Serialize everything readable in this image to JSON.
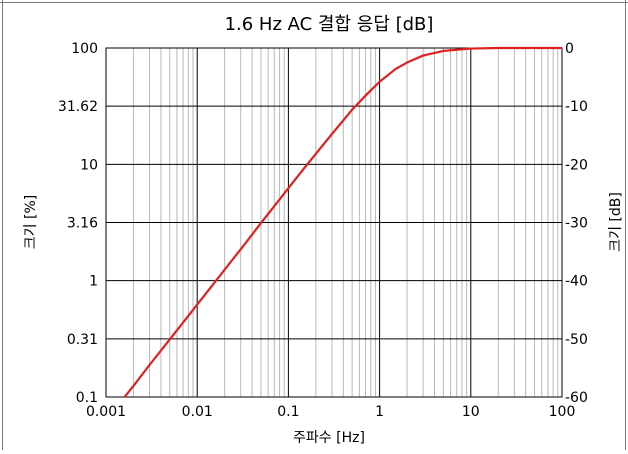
{
  "chart_data": {
    "type": "line",
    "title": "1.6 Hz AC 결합 응답 [dB]",
    "xlabel": "주파수 [Hz]",
    "ylabel_left": "크기 [%]",
    "ylabel_right": "크기 [dB]",
    "x_scale": "log",
    "xlim": [
      0.001,
      100
    ],
    "ylim_db": [
      -60,
      0
    ],
    "grid": true,
    "x_ticks": [
      {
        "value": 0.001,
        "label": "0.001"
      },
      {
        "value": 0.01,
        "label": "0.01"
      },
      {
        "value": 0.1,
        "label": "0.1"
      },
      {
        "value": 1,
        "label": "1"
      },
      {
        "value": 10,
        "label": "10"
      },
      {
        "value": 100,
        "label": "100"
      }
    ],
    "y_ticks_left": [
      {
        "db": 0,
        "label": "100"
      },
      {
        "db": -10,
        "label": "31.62"
      },
      {
        "db": -20,
        "label": "10"
      },
      {
        "db": -30,
        "label": "3.16"
      },
      {
        "db": -40,
        "label": "1"
      },
      {
        "db": -50,
        "label": "0.31"
      },
      {
        "db": -60,
        "label": "0.1"
      }
    ],
    "y_ticks_right": [
      {
        "db": 0,
        "label": "0"
      },
      {
        "db": -10,
        "label": "-10"
      },
      {
        "db": -20,
        "label": "-20"
      },
      {
        "db": -30,
        "label": "-30"
      },
      {
        "db": -40,
        "label": "-40"
      },
      {
        "db": -50,
        "label": "-50"
      },
      {
        "db": -60,
        "label": "-60"
      }
    ],
    "series": [
      {
        "color": "#e02020",
        "x": [
          0.0016,
          0.002,
          0.003,
          0.005,
          0.007,
          0.01,
          0.015,
          0.02,
          0.03,
          0.05,
          0.07,
          0.1,
          0.15,
          0.2,
          0.3,
          0.5,
          0.7,
          1,
          1.5,
          2,
          3,
          5,
          7,
          10,
          20,
          50,
          100
        ],
        "y_db": [
          -60,
          -58.1,
          -54.5,
          -50.1,
          -47.2,
          -44.1,
          -40.6,
          -38.1,
          -34.6,
          -30.1,
          -27.2,
          -24.1,
          -20.6,
          -18.2,
          -14.8,
          -10.6,
          -8.2,
          -5.8,
          -3.6,
          -2.5,
          -1.3,
          -0.5,
          -0.3,
          -0.1,
          0,
          0,
          0
        ]
      }
    ]
  }
}
